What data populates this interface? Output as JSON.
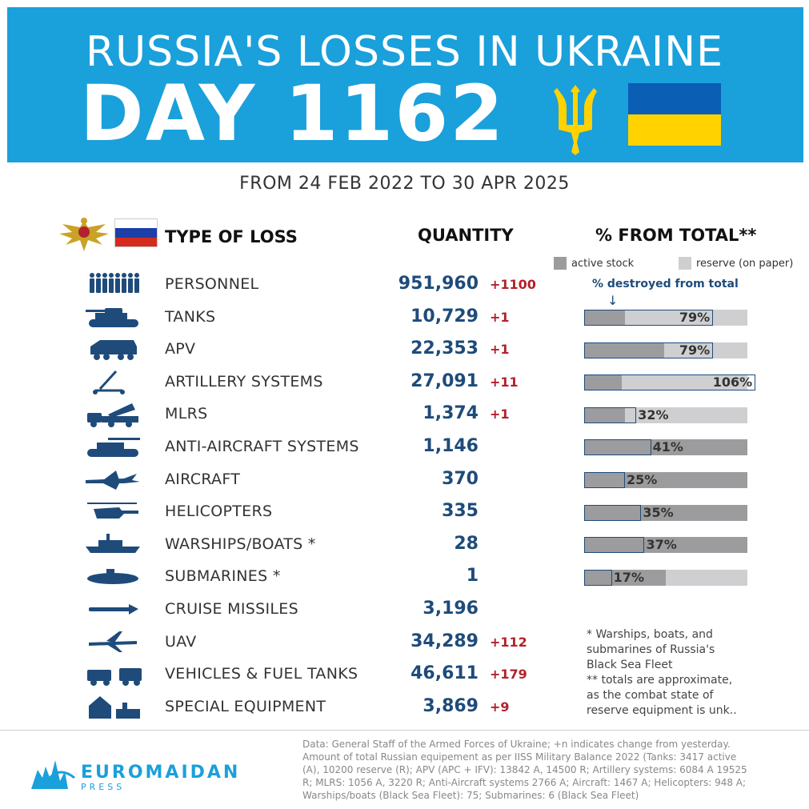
{
  "header": {
    "title": "RUSSIA'S LOSSES IN UKRAINE",
    "day": "DAY 1162",
    "subtitle": "FROM 24 FEB 2022 TO 30 APR 2025",
    "colors": {
      "banner": "#1aa0db",
      "flag_blue": "#0a5eb4",
      "flag_yellow": "#ffd200",
      "trident": "#ffd200"
    }
  },
  "columns": {
    "type": "TYPE OF LOSS",
    "quantity": "QUANTITY",
    "percent": "% FROM TOTAL**"
  },
  "legend": {
    "active": "active stock",
    "reserve": "reserve (on paper)",
    "destroyed_note": "% destroyed from total",
    "arrow": "↓"
  },
  "chart_data": {
    "type": "bar",
    "title": "% FROM TOTAL**",
    "series": [
      {
        "name": "active stock"
      },
      {
        "name": "reserve (on paper)"
      }
    ],
    "rows": [
      {
        "label": "TANKS",
        "active_share": 0.25,
        "destroyed_pct": 79,
        "pct_label": "79%"
      },
      {
        "label": "APV",
        "active_share": 0.49,
        "destroyed_pct": 79,
        "pct_label": "79%"
      },
      {
        "label": "ARTILLERY SYSTEMS",
        "active_share": 0.23,
        "destroyed_pct": 106,
        "pct_label": "106%"
      },
      {
        "label": "MLRS",
        "active_share": 0.25,
        "destroyed_pct": 32,
        "pct_label": "32%"
      },
      {
        "label": "ANTI-AIRCRAFT SYSTEMS",
        "active_share": 1.0,
        "destroyed_pct": 41,
        "pct_label": "41%"
      },
      {
        "label": "AIRCRAFT",
        "active_share": 1.0,
        "destroyed_pct": 25,
        "pct_label": "25%"
      },
      {
        "label": "HELICOPTERS",
        "active_share": 1.0,
        "destroyed_pct": 35,
        "pct_label": "35%"
      },
      {
        "label": "WARSHIPS/BOATS *",
        "active_share": 1.0,
        "destroyed_pct": 37,
        "pct_label": "37%"
      },
      {
        "label": "SUBMARINES *",
        "active_share": 0.5,
        "destroyed_pct": 17,
        "pct_label": "17%"
      }
    ],
    "colors": {
      "active": "#9c9c9e",
      "reserve": "#cfcfd1",
      "destroyed_outline": "#1e4b7a"
    }
  },
  "rows": [
    {
      "icon": "soldiers-icon",
      "label": "PERSONNEL",
      "qty": "951,960",
      "change": "+1100"
    },
    {
      "icon": "tank-icon",
      "label": "TANKS",
      "qty": "10,729",
      "change": "+1"
    },
    {
      "icon": "apv-icon",
      "label": "APV",
      "qty": "22,353",
      "change": "+1"
    },
    {
      "icon": "artillery-icon",
      "label": "ARTILLERY SYSTEMS",
      "qty": "27,091",
      "change": "+11"
    },
    {
      "icon": "mlrs-icon",
      "label": "MLRS",
      "qty": "1,374",
      "change": "+1"
    },
    {
      "icon": "anti-aircraft-icon",
      "label": "ANTI-AIRCRAFT SYSTEMS",
      "qty": "1,146",
      "change": ""
    },
    {
      "icon": "aircraft-icon",
      "label": "AIRCRAFT",
      "qty": "370",
      "change": ""
    },
    {
      "icon": "helicopter-icon",
      "label": "HELICOPTERS",
      "qty": "335",
      "change": ""
    },
    {
      "icon": "warship-icon",
      "label": "WARSHIPS/BOATS *",
      "qty": "28",
      "change": ""
    },
    {
      "icon": "submarine-icon",
      "label": "SUBMARINES *",
      "qty": "1",
      "change": ""
    },
    {
      "icon": "cruise-missile-icon",
      "label": "CRUISE MISSILES",
      "qty": "3,196",
      "change": ""
    },
    {
      "icon": "uav-icon",
      "label": "UAV",
      "qty": "34,289",
      "change": "+112"
    },
    {
      "icon": "vehicles-icon",
      "label": "VEHICLES & FUEL TANKS",
      "qty": "46,611",
      "change": "+179"
    },
    {
      "icon": "special-equipment-icon",
      "label": "SPECIAL EQUIPMENT",
      "qty": "3,869",
      "change": "+9"
    }
  ],
  "footnote": [
    "* Warships, boats, and",
    "submarines of Russia's",
    "Black Sea Fleet",
    "** totals are approximate,",
    "as the combat state of",
    "reserve equipment is unk.."
  ],
  "footer": {
    "logo_name": "EUROMAIDAN",
    "logo_sub": "PRESS",
    "source_lines": [
      "Data: General Staff of the Armed Forces of Ukraine; +n indicates change from yesterday.",
      "Amount of total Russian equipement as per IISS Military Balance 2022 (Tanks: 3417 active",
      "(A), 10200 reserve (R); APV (APC + IFV): 13842 A, 14500 R; Artillery systems: 6084 A 19525",
      "R; MLRS: 1056 A, 3220 R; Anti-Aircraft systems 2766 A; Aircraft: 1467 A; Helicopters: 948 A;",
      "Warships/boats (Black Sea Fleet): 75; Submarines: 6 (Black Sea Fleet)"
    ]
  }
}
